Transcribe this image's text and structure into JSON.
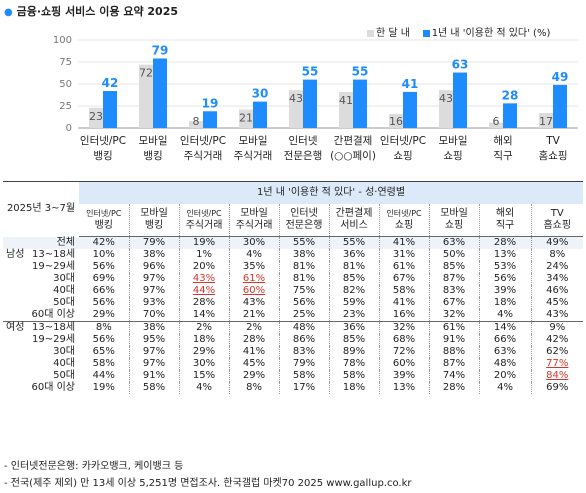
{
  "title": "금융·쇼핑 서비스 이용 요약 2025",
  "colors": {
    "light": "#dcdcdc",
    "blue": "#1e8bff",
    "red": "#d9342b",
    "header_bg": "#dbe9f8",
    "total_bg": "#eef3fa"
  },
  "chart_data": {
    "type": "bar",
    "ylim": [
      0,
      100
    ],
    "yticks": [
      0,
      25,
      50,
      75,
      100
    ],
    "categories": [
      [
        "인터넷/PC",
        "뱅킹"
      ],
      [
        "모바일",
        "뱅킹"
      ],
      [
        "인터넷/PC",
        "주식거래"
      ],
      [
        "모바일",
        "주식거래"
      ],
      [
        "인터넷",
        "전문은행"
      ],
      [
        "간편결제",
        "(○○페이)"
      ],
      [
        "인터넷/PC",
        "쇼핑"
      ],
      [
        "모바일",
        "쇼핑"
      ],
      [
        "해외",
        "직구"
      ],
      [
        "TV",
        "홈쇼핑"
      ]
    ],
    "series": [
      {
        "name": "한 달 내",
        "values": [
          23,
          72,
          8,
          21,
          43,
          41,
          16,
          43,
          6,
          17
        ]
      },
      {
        "name": "1년 내 '이용한 적 있다' (%)",
        "values": [
          42,
          79,
          19,
          30,
          55,
          55,
          41,
          63,
          28,
          49
        ]
      }
    ]
  },
  "table": {
    "caption": "1년 내 '이용한 적 있다' - 성·연령별",
    "period": "2025년 3~7월",
    "columns": [
      [
        "인터넷/PC",
        "뱅킹"
      ],
      [
        "모바일",
        "뱅킹"
      ],
      [
        "인터넷/PC",
        "주식거래"
      ],
      [
        "모바일",
        "주식거래"
      ],
      [
        "인터넷",
        "전문은행"
      ],
      [
        "간편결제",
        "서비스"
      ],
      [
        "인터넷/PC",
        "쇼핑"
      ],
      [
        "모바일",
        "쇼핑"
      ],
      [
        "해외",
        "직구"
      ],
      [
        "TV",
        "홈쇼핑"
      ]
    ],
    "rows": [
      {
        "group": "",
        "sub": "전체",
        "values": [
          "42%",
          "79%",
          "19%",
          "30%",
          "55%",
          "55%",
          "41%",
          "63%",
          "28%",
          "49%"
        ],
        "total": true
      },
      {
        "group": "남성",
        "sub": "13~18세",
        "values": [
          "10%",
          "38%",
          "1%",
          "4%",
          "38%",
          "36%",
          "31%",
          "50%",
          "13%",
          "8%"
        ]
      },
      {
        "group": "",
        "sub": "19~29세",
        "values": [
          "56%",
          "96%",
          "20%",
          "35%",
          "81%",
          "81%",
          "61%",
          "85%",
          "53%",
          "24%"
        ]
      },
      {
        "group": "",
        "sub": "30대",
        "values": [
          "69%",
          "97%",
          "43%",
          "61%",
          "81%",
          "85%",
          "67%",
          "87%",
          "56%",
          "34%"
        ],
        "red": [
          2,
          3
        ]
      },
      {
        "group": "",
        "sub": "40대",
        "values": [
          "66%",
          "97%",
          "44%",
          "60%",
          "75%",
          "82%",
          "58%",
          "83%",
          "39%",
          "46%"
        ],
        "red": [
          2,
          3
        ]
      },
      {
        "group": "",
        "sub": "50대",
        "values": [
          "56%",
          "93%",
          "28%",
          "43%",
          "56%",
          "59%",
          "41%",
          "67%",
          "18%",
          "45%"
        ]
      },
      {
        "group": "",
        "sub": "60대 이상",
        "values": [
          "29%",
          "70%",
          "14%",
          "21%",
          "25%",
          "23%",
          "16%",
          "32%",
          "4%",
          "43%"
        ]
      },
      {
        "group": "여성",
        "sub": "13~18세",
        "values": [
          "8%",
          "38%",
          "2%",
          "2%",
          "48%",
          "36%",
          "32%",
          "61%",
          "14%",
          "9%"
        ],
        "sep": true
      },
      {
        "group": "",
        "sub": "19~29세",
        "values": [
          "56%",
          "95%",
          "18%",
          "28%",
          "86%",
          "85%",
          "68%",
          "91%",
          "66%",
          "42%"
        ]
      },
      {
        "group": "",
        "sub": "30대",
        "values": [
          "65%",
          "97%",
          "29%",
          "41%",
          "83%",
          "89%",
          "72%",
          "88%",
          "63%",
          "62%"
        ]
      },
      {
        "group": "",
        "sub": "40대",
        "values": [
          "58%",
          "97%",
          "30%",
          "45%",
          "79%",
          "78%",
          "60%",
          "87%",
          "48%",
          "77%"
        ],
        "red": [
          9
        ]
      },
      {
        "group": "",
        "sub": "50대",
        "values": [
          "44%",
          "91%",
          "15%",
          "29%",
          "58%",
          "58%",
          "39%",
          "74%",
          "20%",
          "84%"
        ],
        "red": [
          9
        ]
      },
      {
        "group": "",
        "sub": "60대 이상",
        "values": [
          "19%",
          "58%",
          "4%",
          "8%",
          "17%",
          "18%",
          "13%",
          "28%",
          "4%",
          "69%"
        ]
      }
    ]
  },
  "notes": [
    "- 인터넷전문은행: 카카오뱅크, 케이뱅크 등",
    "- 전국(제주 제외) 만 13세 이상 5,251명 면접조사. 한국갤럽 마켓70 2025 www.gallup.co.kr"
  ]
}
